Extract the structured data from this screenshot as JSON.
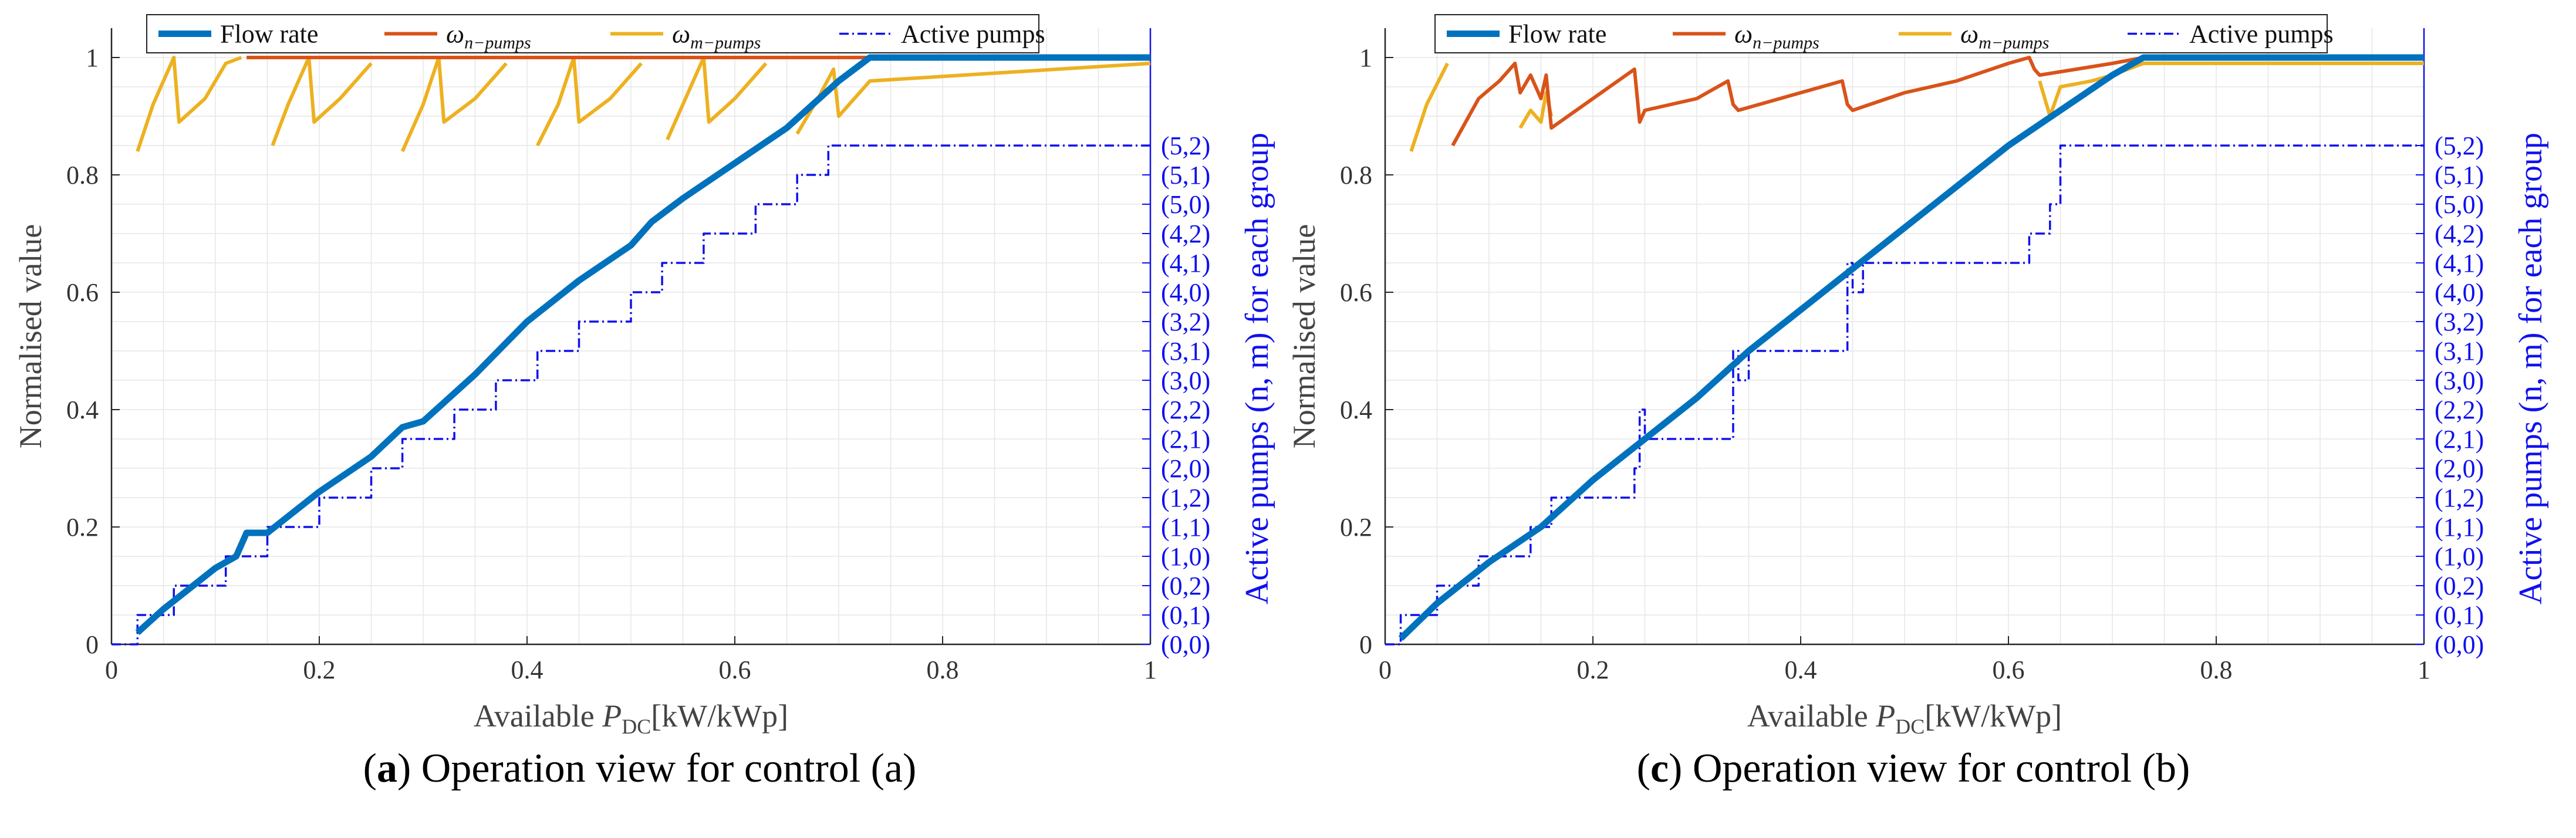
{
  "colors": {
    "flow": "#0072BD",
    "n_pumps": "#D95319",
    "m_pumps": "#EDB120",
    "active": "#1010EE",
    "grid": "#e6e6e6",
    "axis": "#262626"
  },
  "legend": {
    "flow": "Flow rate",
    "n_pumps": "ω",
    "n_pumps_sub": "n−pumps",
    "m_pumps": "ω",
    "m_pumps_sub": "m−pumps",
    "active": "Active pumps"
  },
  "axes": {
    "xlabel_pre": "Available ",
    "xlabel_var": "P",
    "xlabel_sub": "DC",
    "xlabel_post": "[kW/kWp]",
    "ylabel": "Normalised value",
    "y2label": "Active pumps (n, m) for each group",
    "x_ticks": [
      "0",
      "0.2",
      "0.4",
      "0.6",
      "0.8",
      "1"
    ],
    "y_ticks": [
      "0",
      "0.2",
      "0.4",
      "0.6",
      "0.8",
      "1"
    ],
    "y2_ticks": [
      "(0,0)",
      "(0,1)",
      "(0,2)",
      "(1,0)",
      "(1,1)",
      "(1,2)",
      "(2,0)",
      "(2,1)",
      "(2,2)",
      "(3,0)",
      "(3,1)",
      "(3,2)",
      "(4,0)",
      "(4,1)",
      "(4,2)",
      "(5,0)",
      "(5,1)",
      "(5,2)"
    ]
  },
  "captions": [
    {
      "label": "a",
      "text": " Operation view for control (a)"
    },
    {
      "label": "c",
      "text": " Operation view for control (b)"
    }
  ],
  "chart_data": [
    {
      "type": "line",
      "xlim": [
        0,
        1
      ],
      "ylim": [
        0,
        1.05
      ],
      "y2_ticks_count": 18,
      "series": [
        {
          "name": "Flow rate",
          "key": "flow",
          "x": [
            0.025,
            0.05,
            0.1,
            0.12,
            0.13,
            0.15,
            0.2,
            0.25,
            0.28,
            0.3,
            0.35,
            0.4,
            0.45,
            0.5,
            0.52,
            0.55,
            0.6,
            0.65,
            0.7,
            0.73,
            0.8,
            1.0
          ],
          "y": [
            0.02,
            0.06,
            0.13,
            0.15,
            0.19,
            0.19,
            0.26,
            0.32,
            0.37,
            0.38,
            0.46,
            0.55,
            0.62,
            0.68,
            0.72,
            0.76,
            0.82,
            0.88,
            0.96,
            1.0,
            1.0,
            1.0
          ]
        },
        {
          "name": "ω n-pumps",
          "key": "n_pumps",
          "x": [
            0.13,
            1.0
          ],
          "y": [
            1.0,
            1.0
          ]
        },
        {
          "name": "ω m-pumps",
          "key": "m_pumps",
          "x": [
            0.025,
            0.04,
            0.06,
            0.065,
            0.09,
            0.11,
            0.125,
            null,
            0.155,
            0.17,
            0.19,
            0.195,
            0.22,
            0.25,
            null,
            0.28,
            0.3,
            0.315,
            0.32,
            0.35,
            0.38,
            null,
            0.41,
            0.43,
            0.445,
            0.45,
            0.48,
            0.51,
            null,
            0.535,
            0.55,
            0.57,
            0.575,
            0.6,
            0.63,
            null,
            0.66,
            0.68,
            0.695,
            0.7,
            0.73,
            1.0
          ],
          "y": [
            0.84,
            0.92,
            1.0,
            0.89,
            0.93,
            0.99,
            1.0,
            null,
            0.85,
            0.92,
            1.0,
            0.89,
            0.93,
            0.99,
            null,
            0.84,
            0.92,
            1.0,
            0.89,
            0.93,
            0.99,
            null,
            0.85,
            0.92,
            1.0,
            0.89,
            0.93,
            0.99,
            null,
            0.86,
            0.92,
            1.0,
            0.89,
            0.93,
            0.99,
            null,
            0.87,
            0.93,
            0.98,
            0.9,
            0.96,
            0.99
          ]
        },
        {
          "name": "Active pumps",
          "key": "active",
          "step": true,
          "x": [
            0,
            0.025,
            0.06,
            0.11,
            0.15,
            0.2,
            0.25,
            0.28,
            0.33,
            0.37,
            0.41,
            0.45,
            0.5,
            0.53,
            0.57,
            0.62,
            0.66,
            0.69,
            0.7,
            1.0
          ],
          "y": [
            0,
            1,
            2,
            3,
            4,
            5,
            6,
            7,
            8,
            9,
            10,
            11,
            12,
            13,
            14,
            15,
            16,
            17,
            17,
            17
          ]
        }
      ]
    },
    {
      "type": "line",
      "xlim": [
        0,
        1
      ],
      "ylim": [
        0,
        1.05
      ],
      "y2_ticks_count": 18,
      "series": [
        {
          "name": "Flow rate",
          "key": "flow",
          "x": [
            0.015,
            0.05,
            0.1,
            0.15,
            0.2,
            0.25,
            0.3,
            0.35,
            0.4,
            0.45,
            0.5,
            0.55,
            0.6,
            0.65,
            0.7,
            0.73,
            0.8,
            1.0
          ],
          "y": [
            0.01,
            0.07,
            0.14,
            0.2,
            0.28,
            0.35,
            0.42,
            0.5,
            0.57,
            0.64,
            0.71,
            0.78,
            0.85,
            0.91,
            0.97,
            1.0,
            1.0,
            1.0
          ]
        },
        {
          "name": "ω n-pumps",
          "key": "n_pumps",
          "x": [
            0.065,
            0.09,
            0.11,
            0.125,
            0.13,
            0.14,
            0.15,
            0.155,
            0.16,
            0.2,
            0.24,
            0.245,
            0.25,
            0.3,
            0.33,
            0.335,
            0.34,
            0.4,
            0.44,
            0.445,
            0.45,
            0.5,
            0.55,
            0.6,
            0.62,
            0.625,
            0.63,
            0.7,
            0.73,
            1.0
          ],
          "y": [
            0.85,
            0.93,
            0.96,
            0.99,
            0.94,
            0.97,
            0.93,
            0.97,
            0.88,
            0.93,
            0.98,
            0.89,
            0.91,
            0.93,
            0.96,
            0.92,
            0.91,
            0.94,
            0.96,
            0.92,
            0.91,
            0.94,
            0.96,
            0.99,
            1.0,
            0.98,
            0.97,
            0.99,
            1.0,
            1.0
          ]
        },
        {
          "name": "ω m-pumps",
          "key": "m_pumps",
          "x": [
            0.025,
            0.04,
            0.06,
            null,
            0.13,
            0.14,
            0.15,
            0.155,
            0.16,
            null,
            0.63,
            0.64,
            0.65,
            0.68,
            0.7,
            0.73,
            1.0
          ],
          "y": [
            0.84,
            0.92,
            0.99,
            null,
            0.88,
            0.91,
            0.89,
            0.94,
            0.9,
            null,
            0.96,
            0.9,
            0.95,
            0.96,
            0.97,
            0.99,
            0.99
          ]
        },
        {
          "name": "Active pumps",
          "key": "active",
          "step": true,
          "x": [
            0,
            0.015,
            0.05,
            0.09,
            0.14,
            0.16,
            0.24,
            0.245,
            0.25,
            0.335,
            0.34,
            0.35,
            0.445,
            0.45,
            0.46,
            0.62,
            0.64,
            0.65,
            1.0
          ],
          "y": [
            0,
            1,
            2,
            3,
            4,
            5,
            6,
            8,
            7,
            10,
            9,
            10,
            13,
            12,
            13,
            14,
            15,
            17,
            17
          ]
        }
      ]
    }
  ]
}
